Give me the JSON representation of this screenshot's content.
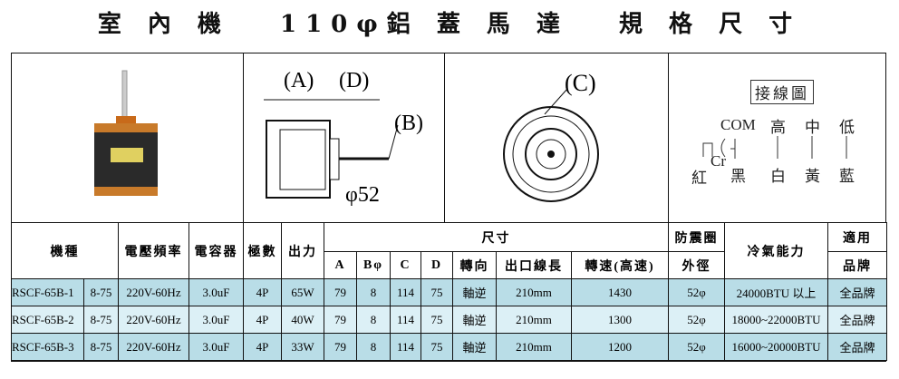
{
  "title": "室 內 機　 110φ鋁 蓋 馬 達　 規 格 尺 寸",
  "diagram": {
    "label_a": "(A)",
    "label_d": "(D)",
    "label_b": "(B)",
    "label_c": "(C)",
    "shaft": "φ52"
  },
  "wiring": {
    "title": "接線圖",
    "com": "COM",
    "high": "高",
    "mid": "中",
    "low": "低",
    "cr": "Cr",
    "red": "紅",
    "black": "黑",
    "white": "白",
    "yellow": "黃",
    "blue": "藍"
  },
  "headers": {
    "model": "機種",
    "voltage": "電壓頻率",
    "capacitor": "電容器",
    "poles": "極數",
    "output": "出力",
    "size": "尺寸",
    "a": "A",
    "b": "Bφ",
    "c": "C",
    "d": "D",
    "rotation": "轉向",
    "lead": "出口線長",
    "speed": "轉速(高速)",
    "mount1": "防震圈",
    "mount2": "外徑",
    "capacity": "冷氣能力",
    "brand1": "適用",
    "brand2": "品牌"
  },
  "rows": [
    {
      "model": "RSCF-65B-1",
      "code": "8-75",
      "voltage": "220V-60Hz",
      "cap": "3.0uF",
      "poles": "4P",
      "output": "65W",
      "a": "79",
      "b": "8",
      "c": "114",
      "d": "75",
      "rotation": "軸逆",
      "lead": "210mm",
      "speed": "1430",
      "mount": "52φ",
      "capacity": "24000BTU 以上",
      "brand": "全品牌"
    },
    {
      "model": "RSCF-65B-2",
      "code": "8-75",
      "voltage": "220V-60Hz",
      "cap": "3.0uF",
      "poles": "4P",
      "output": "40W",
      "a": "79",
      "b": "8",
      "c": "114",
      "d": "75",
      "rotation": "軸逆",
      "lead": "210mm",
      "speed": "1300",
      "mount": "52φ",
      "capacity": "18000~22000BTU",
      "brand": "全品牌"
    },
    {
      "model": "RSCF-65B-3",
      "code": "8-75",
      "voltage": "220V-60Hz",
      "cap": "3.0uF",
      "poles": "4P",
      "output": "33W",
      "a": "79",
      "b": "8",
      "c": "114",
      "d": "75",
      "rotation": "軸逆",
      "lead": "210mm",
      "speed": "1200",
      "mount": "52φ",
      "capacity": "16000~20000BTU",
      "brand": "全品牌"
    }
  ]
}
